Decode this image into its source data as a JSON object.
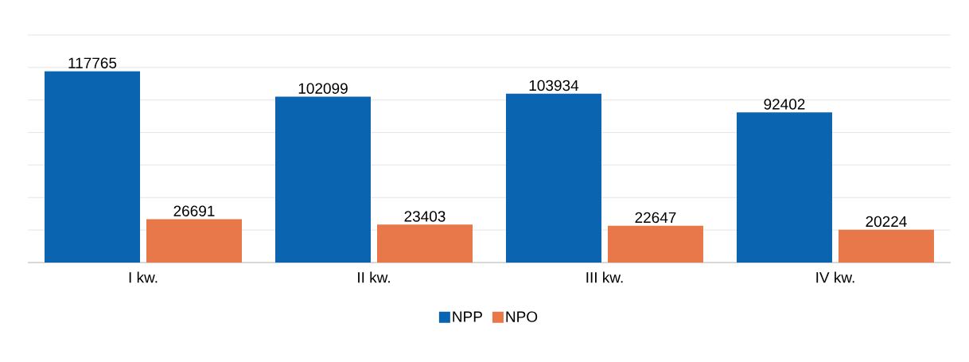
{
  "chart_data": {
    "type": "bar",
    "categories": [
      "I kw.",
      "II kw.",
      "III kw.",
      "IV kw."
    ],
    "series": [
      {
        "name": "NPP",
        "color": "#0b64b0",
        "values": [
          117765,
          102099,
          103934,
          92402
        ]
      },
      {
        "name": "NPO",
        "color": "#e8784a",
        "values": [
          26691,
          23403,
          22647,
          20224
        ]
      }
    ],
    "ylim": [
      0,
      140000
    ],
    "tick_labels": "x",
    "grid": "y",
    "legend": "bottom",
    "data_labels": true
  }
}
